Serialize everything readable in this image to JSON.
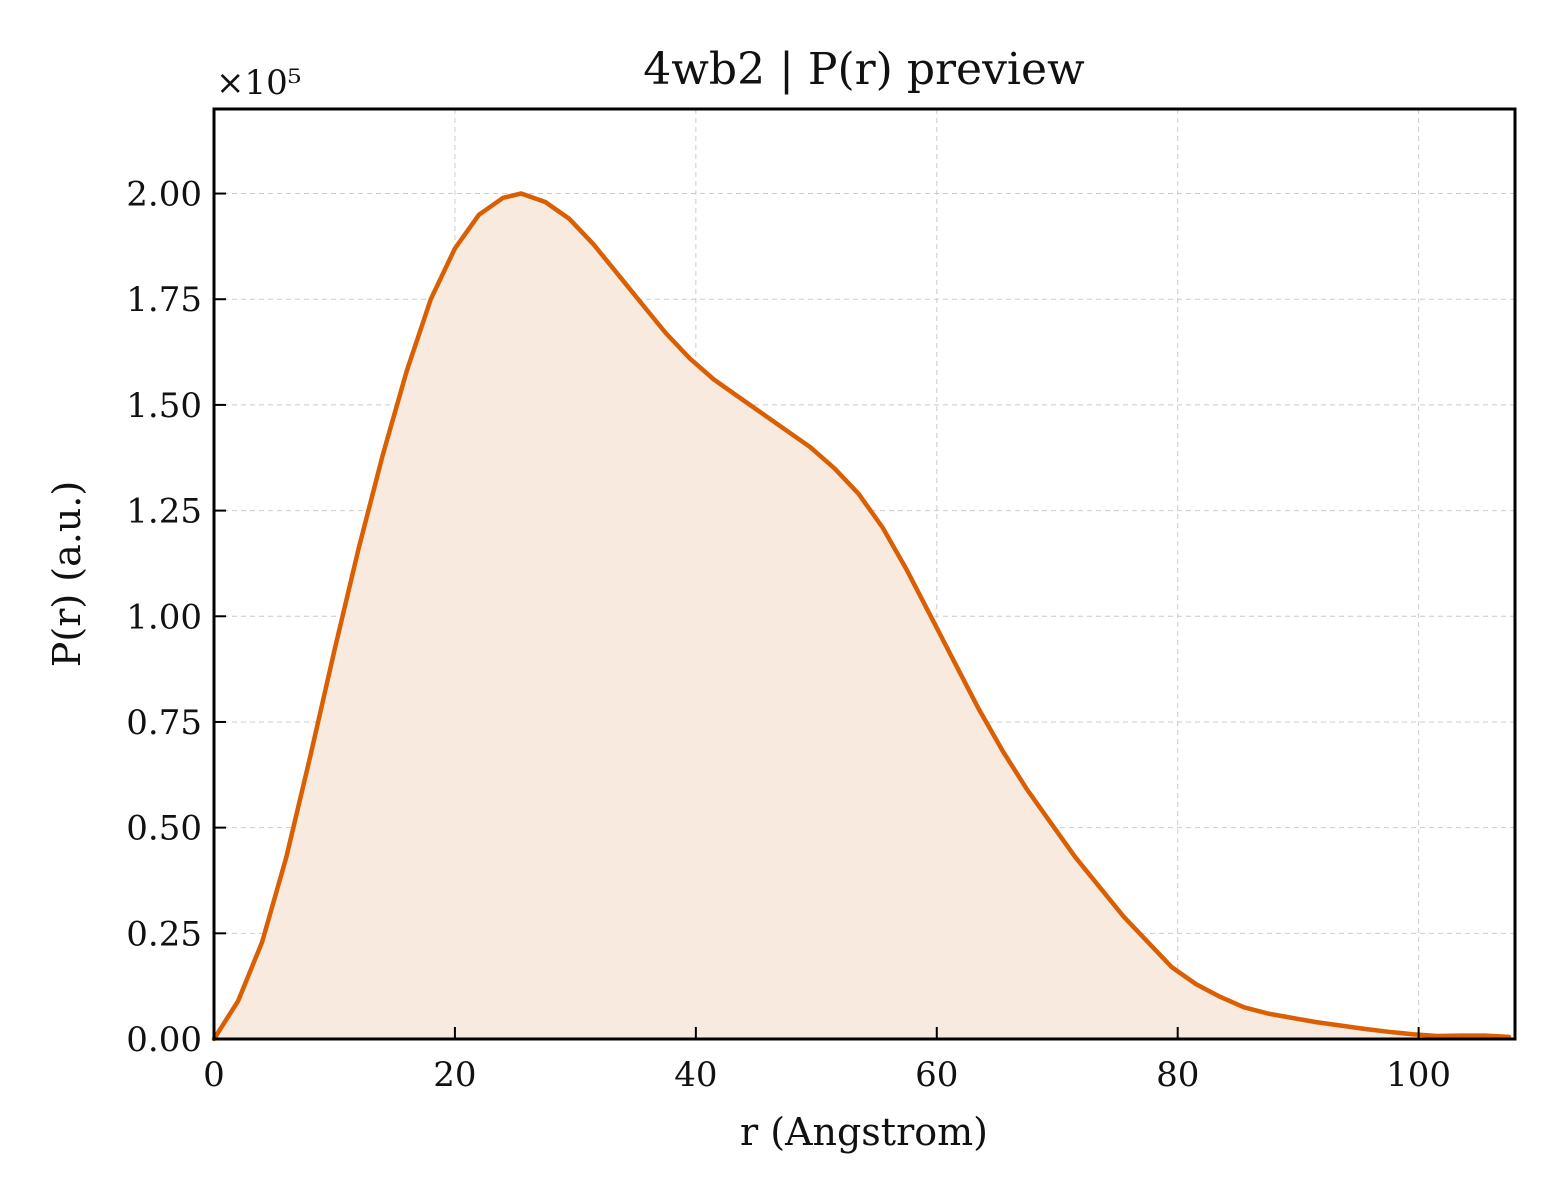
{
  "chart_data": {
    "type": "area",
    "title": "4wb2 | P(r) preview",
    "xlabel": "r (Angstrom)",
    "ylabel": "P(r) (a.u.)",
    "y_multiplier_label": "×10⁵",
    "y_scale_factor": 100000,
    "xlim": [
      0,
      108
    ],
    "ylim": [
      0,
      2.2
    ],
    "x_ticks": [
      0,
      20,
      40,
      60,
      80,
      100
    ],
    "x_tick_labels": [
      "0",
      "20",
      "40",
      "60",
      "80",
      "100"
    ],
    "y_ticks": [
      0,
      0.25,
      0.5,
      0.75,
      1.0,
      1.25,
      1.5,
      1.75,
      2.0
    ],
    "y_tick_labels": [
      "0.00",
      "0.25",
      "0.50",
      "0.75",
      "1.00",
      "1.25",
      "1.50",
      "1.75",
      "2.00"
    ],
    "grid": true,
    "line_color": "#d95f02",
    "fill_color": "#f9eadf",
    "series": [
      {
        "x": [
          0,
          2,
          4,
          6,
          8,
          10,
          12,
          14,
          16,
          18,
          20,
          22,
          24,
          25.5,
          27.5,
          29.5,
          31.5,
          33.5,
          35.5,
          37.5,
          39.5,
          41.5,
          43.5,
          45.5,
          47.5,
          49.5,
          51.5,
          53.5,
          55.5,
          57.5,
          59.5,
          61.5,
          63.5,
          65.5,
          67.5,
          69.5,
          71.5,
          73.5,
          75.5,
          77.5,
          79.5,
          81.5,
          83.5,
          85.5,
          87.5,
          89.5,
          91.5,
          93.5,
          95.5,
          97.5,
          99.5,
          101.5,
          103.5,
          105.5,
          107.5
        ],
        "values": [
          0.0,
          0.09,
          0.23,
          0.43,
          0.67,
          0.92,
          1.16,
          1.38,
          1.58,
          1.75,
          1.87,
          1.95,
          1.99,
          2.0,
          1.98,
          1.94,
          1.88,
          1.81,
          1.74,
          1.67,
          1.61,
          1.56,
          1.52,
          1.48,
          1.44,
          1.4,
          1.35,
          1.29,
          1.21,
          1.11,
          1.0,
          0.89,
          0.78,
          0.68,
          0.59,
          0.51,
          0.43,
          0.36,
          0.29,
          0.23,
          0.17,
          0.13,
          0.1,
          0.075,
          0.06,
          0.05,
          0.04,
          0.032,
          0.024,
          0.017,
          0.011,
          0.007,
          0.008,
          0.008,
          0.005
        ]
      }
    ]
  }
}
